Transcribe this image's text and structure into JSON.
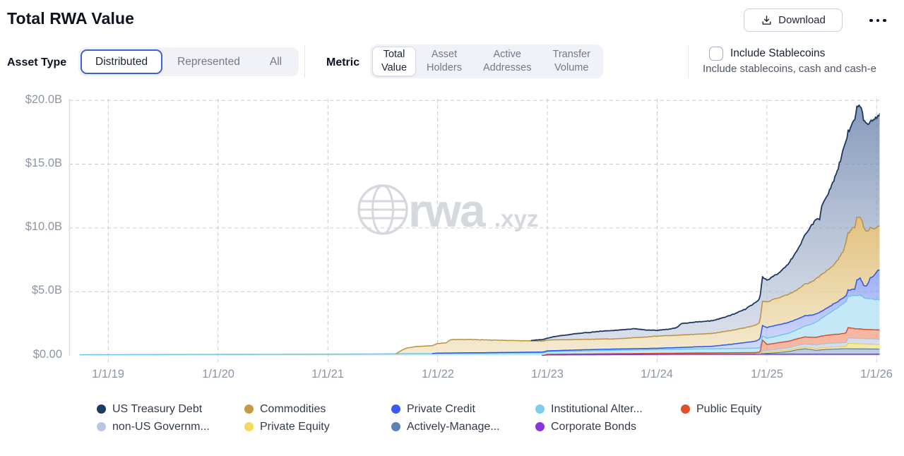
{
  "header": {
    "title": "Total RWA Value",
    "download_label": "Download"
  },
  "filters": {
    "asset_type": {
      "label": "Asset Type",
      "options": [
        "Distributed",
        "Represented",
        "All"
      ],
      "selected": "Distributed"
    },
    "metric": {
      "label": "Metric",
      "options": [
        {
          "line1": "Total",
          "line2": "Value",
          "selected": true
        },
        {
          "line1": "Asset",
          "line2": "Holders",
          "selected": false
        },
        {
          "line1": "Active",
          "line2": "Addresses",
          "selected": false
        },
        {
          "line1": "Transfer",
          "line2": "Volume",
          "selected": false
        }
      ]
    },
    "stablecoins": {
      "label": "Include Stablecoins",
      "sublabel": "Include stablecoins, cash and cash-e",
      "checked": false
    }
  },
  "watermark": {
    "text": "rwa",
    "suffix": ".xyz"
  },
  "chart_data": {
    "type": "area",
    "stacked": true,
    "title": "Total RWA Value",
    "unit": "USD billions",
    "ylabel": "Total RWA Value",
    "y_ticks": [
      "$20.0B",
      "$15.0B",
      "$10.0B",
      "$5.0B",
      "$0.00"
    ],
    "y_tick_values": [
      20,
      15,
      10,
      5,
      0
    ],
    "ylim": [
      0,
      20
    ],
    "x_ticks": [
      "1/1/19",
      "1/1/20",
      "1/1/21",
      "1/1/22",
      "1/1/23",
      "1/1/24",
      "1/1/25",
      "1/1/26"
    ],
    "x_tick_years": [
      2019,
      2020,
      2021,
      2022,
      2023,
      2024,
      2025,
      2026
    ],
    "x_range_years": [
      2018.74,
      2026.03
    ],
    "grid": true,
    "legend_position": "bottom",
    "legend": [
      {
        "label": "US Treasury Debt",
        "color": "#1b3a66"
      },
      {
        "label": "Commodities",
        "color": "#c79a45"
      },
      {
        "label": "Private Credit",
        "color": "#3b5bf0"
      },
      {
        "label": "Institutional Alter...",
        "color": "#7ecdec"
      },
      {
        "label": "Public Equity",
        "color": "#e2502b"
      },
      {
        "label": "non-US Governm...",
        "color": "#b8c7e4"
      },
      {
        "label": "Private Equity",
        "color": "#f3d95e"
      },
      {
        "label": "Actively-Manage...",
        "color": "#5d81b4"
      },
      {
        "label": "Corporate Bonds",
        "color": "#8936d9"
      }
    ],
    "series": [
      {
        "name": "Corporate Bonds",
        "color": "#6d3bcf",
        "fill": "#c7ade9",
        "fill_opacity": 0.6,
        "line_width": 1.5,
        "noise": 0.01,
        "points": [
          [
            2018.74,
            0
          ],
          [
            2022.95,
            0
          ],
          [
            2023,
            0.04
          ],
          [
            2023.5,
            0.06
          ],
          [
            2024,
            0.08
          ],
          [
            2024.4,
            0.1
          ],
          [
            2026.03,
            0.1
          ]
        ]
      },
      {
        "name": "Actively-Managed",
        "color": "#55779f",
        "fill": "#8fa9c9",
        "fill_opacity": 0.6,
        "line_width": 1.1,
        "noise": 0.02,
        "points": [
          [
            2018.74,
            0
          ],
          [
            2024.9,
            0
          ],
          [
            2024.96,
            0.04
          ],
          [
            2025,
            0.06
          ],
          [
            2025.1,
            0.12
          ],
          [
            2025.2,
            0.2
          ],
          [
            2025.28,
            0.35
          ],
          [
            2025.35,
            0.42
          ],
          [
            2025.45,
            0.3
          ],
          [
            2025.55,
            0.38
          ],
          [
            2025.7,
            0.42
          ],
          [
            2026.03,
            0.4
          ]
        ]
      },
      {
        "name": "Private Equity",
        "color": "#e8cc4e",
        "fill": "#f4e394",
        "fill_opacity": 0.8,
        "line_width": 1.1,
        "noise": 0.02,
        "points": [
          [
            2018.74,
            0
          ],
          [
            2024.93,
            0
          ],
          [
            2024.96,
            0.1
          ],
          [
            2025.2,
            0.12
          ],
          [
            2025.5,
            0.15
          ],
          [
            2025.72,
            0.18
          ],
          [
            2025.74,
            0.43
          ],
          [
            2025.85,
            0.4
          ],
          [
            2026.03,
            0.35
          ]
        ]
      },
      {
        "name": "non-US Government",
        "color": "#aebdd8",
        "fill": "#ccd7e9",
        "fill_opacity": 0.85,
        "line_width": 1.1,
        "noise": 0.02,
        "points": [
          [
            2018.74,
            0
          ],
          [
            2024.93,
            0
          ],
          [
            2024.96,
            0.12
          ],
          [
            2025.2,
            0.18
          ],
          [
            2025.4,
            0.25
          ],
          [
            2025.5,
            0.3
          ],
          [
            2025.72,
            0.3
          ],
          [
            2025.74,
            0.42
          ],
          [
            2026.03,
            0.43
          ]
        ]
      },
      {
        "name": "Public Equity",
        "color": "#d34a28",
        "fill": "#f0906c",
        "fill_opacity": 0.65,
        "line_width": 1.4,
        "noise": 0.03,
        "points": [
          [
            2018.74,
            0
          ],
          [
            2022.97,
            0
          ],
          [
            2023,
            0.05
          ],
          [
            2023.5,
            0.07
          ],
          [
            2024,
            0.08
          ],
          [
            2024.5,
            0.1
          ],
          [
            2024.9,
            0.12
          ],
          [
            2024.94,
            0.14
          ],
          [
            2024.96,
            0.85
          ],
          [
            2025,
            0.47
          ],
          [
            2025.1,
            0.5
          ],
          [
            2025.25,
            0.52
          ],
          [
            2025.4,
            0.58
          ],
          [
            2025.55,
            0.65
          ],
          [
            2025.7,
            0.72
          ],
          [
            2025.74,
            0.82
          ],
          [
            2025.8,
            0.75
          ],
          [
            2025.9,
            0.72
          ],
          [
            2026.03,
            0.72
          ]
        ]
      },
      {
        "name": "Institutional Alternative",
        "color": "#6ec4e8",
        "fill": "#b5e2f4",
        "fill_opacity": 0.8,
        "line_width": 1.4,
        "noise": 0.03,
        "points": [
          [
            2018.74,
            0.05
          ],
          [
            2019,
            0.06
          ],
          [
            2019.5,
            0.07
          ],
          [
            2020,
            0.08
          ],
          [
            2021,
            0.1
          ],
          [
            2021.5,
            0.12
          ],
          [
            2022,
            0.15
          ],
          [
            2022.5,
            0.17
          ],
          [
            2023,
            0.2
          ],
          [
            2023.5,
            0.25
          ],
          [
            2024,
            0.3
          ],
          [
            2024.5,
            0.32
          ],
          [
            2024.9,
            0.35
          ],
          [
            2024.96,
            0.33
          ],
          [
            2025,
            0.48
          ],
          [
            2025.1,
            0.55
          ],
          [
            2025.2,
            0.63
          ],
          [
            2025.3,
            0.75
          ],
          [
            2025.4,
            1.0
          ],
          [
            2025.5,
            1.4
          ],
          [
            2025.6,
            1.85
          ],
          [
            2025.7,
            2.38
          ],
          [
            2025.75,
            2.5
          ],
          [
            2025.8,
            2.55
          ],
          [
            2025.85,
            2.63
          ],
          [
            2025.9,
            2.45
          ],
          [
            2026.03,
            2.35
          ]
        ]
      },
      {
        "name": "Private Credit",
        "color": "#2f55e8",
        "fill": "url(#g-pc)",
        "fill_opacity": 1,
        "line_width": 1.5,
        "noise": 0.04,
        "points": [
          [
            2018.74,
            0
          ],
          [
            2021.95,
            0
          ],
          [
            2022,
            0.03
          ],
          [
            2022.5,
            0.05
          ],
          [
            2023,
            0.07
          ],
          [
            2023.5,
            0.1
          ],
          [
            2024,
            0.1
          ],
          [
            2024.3,
            0.15
          ],
          [
            2024.5,
            0.2
          ],
          [
            2024.7,
            0.35
          ],
          [
            2024.9,
            0.55
          ],
          [
            2024.96,
            0.8
          ],
          [
            2025,
            0.85
          ],
          [
            2025.2,
            0.85
          ],
          [
            2025.35,
            0.8
          ],
          [
            2025.5,
            0.55
          ],
          [
            2025.6,
            0.5
          ],
          [
            2025.7,
            0.45
          ],
          [
            2025.8,
            0.5
          ],
          [
            2025.82,
            1.2
          ],
          [
            2025.85,
            1.35
          ],
          [
            2025.88,
            0.95
          ],
          [
            2025.91,
            1.0
          ],
          [
            2025.94,
            1.6
          ],
          [
            2025.97,
            1.8
          ],
          [
            2026,
            2.2
          ],
          [
            2026.03,
            2.35
          ]
        ]
      },
      {
        "name": "Commodities",
        "color": "#bb9240",
        "fill": "url(#g-com)",
        "fill_opacity": 1,
        "line_width": 1.5,
        "noise": 0.03,
        "points": [
          [
            2018.74,
            0
          ],
          [
            2021.62,
            0
          ],
          [
            2021.68,
            0.3
          ],
          [
            2021.72,
            0.45
          ],
          [
            2021.8,
            0.55
          ],
          [
            2021.95,
            0.62
          ],
          [
            2022,
            0.75
          ],
          [
            2022.08,
            0.8
          ],
          [
            2022.12,
            1.05
          ],
          [
            2022.3,
            1.05
          ],
          [
            2022.45,
            1.0
          ],
          [
            2022.6,
            0.95
          ],
          [
            2022.8,
            0.9
          ],
          [
            2023,
            0.85
          ],
          [
            2023.3,
            0.82
          ],
          [
            2023.6,
            0.8
          ],
          [
            2023.85,
            0.88
          ],
          [
            2024,
            0.95
          ],
          [
            2024.3,
            0.98
          ],
          [
            2024.5,
            1.0
          ],
          [
            2024.7,
            1.1
          ],
          [
            2024.85,
            1.2
          ],
          [
            2024.93,
            1.3
          ],
          [
            2024.96,
            1.9
          ],
          [
            2025,
            2.0
          ],
          [
            2025.1,
            2.1
          ],
          [
            2025.2,
            2.2
          ],
          [
            2025.3,
            2.35
          ],
          [
            2025.4,
            2.6
          ],
          [
            2025.5,
            2.9
          ],
          [
            2025.6,
            3.0
          ],
          [
            2025.65,
            3.3
          ],
          [
            2025.7,
            3.7
          ],
          [
            2025.73,
            4.4
          ],
          [
            2025.78,
            4.8
          ],
          [
            2025.83,
            4.9
          ],
          [
            2025.87,
            4.7
          ],
          [
            2025.9,
            4.35
          ],
          [
            2025.95,
            3.9
          ],
          [
            2026,
            3.5
          ],
          [
            2026.03,
            3.45
          ]
        ]
      },
      {
        "name": "US Treasury Debt",
        "color": "#1c3760",
        "fill": "url(#g-ust)",
        "fill_opacity": 1,
        "line_width": 1.8,
        "noise": 0.035,
        "points": [
          [
            2018.74,
            0
          ],
          [
            2022.85,
            0
          ],
          [
            2022.9,
            0.08
          ],
          [
            2023,
            0.15
          ],
          [
            2023.1,
            0.3
          ],
          [
            2023.25,
            0.45
          ],
          [
            2023.4,
            0.55
          ],
          [
            2023.5,
            0.62
          ],
          [
            2023.65,
            0.68
          ],
          [
            2023.8,
            0.7
          ],
          [
            2023.9,
            0.55
          ],
          [
            2024,
            0.45
          ],
          [
            2024.1,
            0.5
          ],
          [
            2024.18,
            0.6
          ],
          [
            2024.22,
            0.9
          ],
          [
            2024.35,
            0.95
          ],
          [
            2024.5,
            1.0
          ],
          [
            2024.6,
            1.1
          ],
          [
            2024.7,
            1.25
          ],
          [
            2024.8,
            1.45
          ],
          [
            2024.9,
            1.8
          ],
          [
            2024.96,
            1.9
          ],
          [
            2025,
            1.7
          ],
          [
            2025.1,
            1.9
          ],
          [
            2025.2,
            2.4
          ],
          [
            2025.3,
            3.3
          ],
          [
            2025.4,
            4.4
          ],
          [
            2025.45,
            4.7
          ],
          [
            2025.48,
            4.5
          ],
          [
            2025.5,
            5.4
          ],
          [
            2025.55,
            5.9
          ],
          [
            2025.6,
            6.5
          ],
          [
            2025.65,
            7.2
          ],
          [
            2025.7,
            8.0
          ],
          [
            2025.73,
            7.9
          ],
          [
            2025.78,
            8.2
          ],
          [
            2025.83,
            8.8
          ],
          [
            2025.85,
            8.7
          ],
          [
            2025.88,
            8.5
          ],
          [
            2025.9,
            8.6
          ],
          [
            2025.93,
            8.2
          ],
          [
            2025.96,
            8.4
          ],
          [
            2026,
            8.7
          ],
          [
            2026.03,
            8.8
          ]
        ]
      }
    ]
  }
}
